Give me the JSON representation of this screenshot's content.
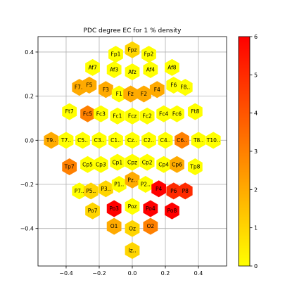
{
  "chart_data": {
    "type": "scatter",
    "title": "PDC degree EC for 1 % density",
    "xlim": [
      -0.57,
      0.57
    ],
    "ylim": [
      -0.57,
      0.47
    ],
    "xticks": [
      -0.4,
      -0.2,
      0.0,
      0.2,
      0.4
    ],
    "xtick_labels": [
      "−0.4",
      "−0.2",
      "0.0",
      "0.2",
      "0.4"
    ],
    "yticks": [
      0.4,
      0.2,
      0.0,
      -0.2,
      -0.4
    ],
    "ytick_labels": [
      "0.4",
      "0.2",
      "0.0",
      "−0.2",
      "−0.4"
    ],
    "grid": true,
    "colorbar": {
      "cmap": "autumn_r",
      "min": 0,
      "max": 6,
      "ticks": [
        0,
        1,
        2,
        3,
        4,
        5,
        6
      ],
      "tick_labels": [
        "0",
        "1",
        "2",
        "3",
        "4",
        "5",
        "6"
      ],
      "colors": [
        "#ffff00",
        "#ff8000",
        "#ff0000"
      ]
    },
    "points": [
      {
        "label": "Fpz",
        "x": 0.0,
        "y": 0.41,
        "value": 1
      },
      {
        "label": "Fp1",
        "x": -0.1,
        "y": 0.39,
        "value": 0
      },
      {
        "label": "Fp2",
        "x": 0.1,
        "y": 0.39,
        "value": 0
      },
      {
        "label": "Af7",
        "x": -0.24,
        "y": 0.33,
        "value": 0
      },
      {
        "label": "Af3",
        "x": -0.11,
        "y": 0.32,
        "value": 0
      },
      {
        "label": "Afz",
        "x": 0.0,
        "y": 0.31,
        "value": 0
      },
      {
        "label": "Af4",
        "x": 0.11,
        "y": 0.32,
        "value": 0
      },
      {
        "label": "Af8",
        "x": 0.24,
        "y": 0.33,
        "value": 0
      },
      {
        "label": "F7..",
        "x": -0.32,
        "y": 0.24,
        "value": 2
      },
      {
        "label": "F5",
        "x": -0.26,
        "y": 0.25,
        "value": 2
      },
      {
        "label": "F3",
        "x": -0.16,
        "y": 0.23,
        "value": 2
      },
      {
        "label": "F1",
        "x": -0.08,
        "y": 0.21,
        "value": 0
      },
      {
        "label": "Fz",
        "x": -0.01,
        "y": 0.21,
        "value": 2
      },
      {
        "label": "F2",
        "x": 0.07,
        "y": 0.21,
        "value": 2
      },
      {
        "label": "F4",
        "x": 0.15,
        "y": 0.23,
        "value": 2
      },
      {
        "label": "F6",
        "x": 0.25,
        "y": 0.25,
        "value": 0
      },
      {
        "label": "F8..",
        "x": 0.32,
        "y": 0.24,
        "value": 0
      },
      {
        "label": "Ft7",
        "x": -0.38,
        "y": 0.13,
        "value": 0
      },
      {
        "label": "Fc5",
        "x": -0.27,
        "y": 0.12,
        "value": 3
      },
      {
        "label": "Fc3",
        "x": -0.19,
        "y": 0.12,
        "value": 0
      },
      {
        "label": "Fc1",
        "x": -0.09,
        "y": 0.11,
        "value": 0
      },
      {
        "label": "Fcz",
        "x": 0.0,
        "y": 0.11,
        "value": 0
      },
      {
        "label": "Fc2",
        "x": 0.09,
        "y": 0.11,
        "value": 0
      },
      {
        "label": "Fc4",
        "x": 0.19,
        "y": 0.12,
        "value": 0
      },
      {
        "label": "Fc6",
        "x": 0.27,
        "y": 0.12,
        "value": 0
      },
      {
        "label": "Ft8",
        "x": 0.38,
        "y": 0.13,
        "value": 0
      },
      {
        "label": "T9..",
        "x": -0.49,
        "y": 0.0,
        "value": 2
      },
      {
        "label": "T7..",
        "x": -0.4,
        "y": 0.0,
        "value": 0
      },
      {
        "label": "C5..",
        "x": -0.3,
        "y": 0.0,
        "value": 0
      },
      {
        "label": "C3..",
        "x": -0.2,
        "y": 0.0,
        "value": 0
      },
      {
        "label": "C1..",
        "x": -0.1,
        "y": 0.0,
        "value": 0
      },
      {
        "label": "Cz..",
        "x": 0.0,
        "y": 0.0,
        "value": 0
      },
      {
        "label": "C2..",
        "x": 0.1,
        "y": 0.0,
        "value": 0
      },
      {
        "label": "C4..",
        "x": 0.2,
        "y": 0.0,
        "value": 0
      },
      {
        "label": "C6..",
        "x": 0.3,
        "y": 0.0,
        "value": 3
      },
      {
        "label": "T8..",
        "x": 0.4,
        "y": 0.0,
        "value": 0
      },
      {
        "label": "T10..",
        "x": 0.49,
        "y": 0.0,
        "value": 0
      },
      {
        "label": "Tp7",
        "x": -0.38,
        "y": -0.12,
        "value": 3
      },
      {
        "label": "Cp5",
        "x": -0.27,
        "y": -0.11,
        "value": 0
      },
      {
        "label": "Cp3",
        "x": -0.19,
        "y": -0.11,
        "value": 0
      },
      {
        "label": "Cp1",
        "x": -0.09,
        "y": -0.1,
        "value": 0
      },
      {
        "label": "Cpz",
        "x": 0.0,
        "y": -0.1,
        "value": 0
      },
      {
        "label": "Cp2",
        "x": 0.09,
        "y": -0.1,
        "value": 0
      },
      {
        "label": "Cp4",
        "x": 0.19,
        "y": -0.11,
        "value": 0
      },
      {
        "label": "Cp6",
        "x": 0.27,
        "y": -0.11,
        "value": 2
      },
      {
        "label": "Tp8",
        "x": 0.38,
        "y": -0.12,
        "value": 0
      },
      {
        "label": "P7..",
        "x": -0.32,
        "y": -0.23,
        "value": 0
      },
      {
        "label": "P5..",
        "x": -0.25,
        "y": -0.23,
        "value": 1
      },
      {
        "label": "P3..",
        "x": -0.16,
        "y": -0.22,
        "value": 1
      },
      {
        "label": "P1..",
        "x": -0.08,
        "y": -0.2,
        "value": 0
      },
      {
        "label": "Pz..",
        "x": 0.0,
        "y": -0.18,
        "value": 2
      },
      {
        "label": "P2..",
        "x": 0.08,
        "y": -0.2,
        "value": 0
      },
      {
        "label": "P4",
        "x": 0.16,
        "y": -0.22,
        "value": 6
      },
      {
        "label": "P6",
        "x": 0.25,
        "y": -0.23,
        "value": 5
      },
      {
        "label": "P8",
        "x": 0.32,
        "y": -0.23,
        "value": 5
      },
      {
        "label": "Po7",
        "x": -0.24,
        "y": -0.32,
        "value": 1
      },
      {
        "label": "Po3",
        "x": -0.11,
        "y": -0.31,
        "value": 6
      },
      {
        "label": "Poz",
        "x": 0.0,
        "y": -0.3,
        "value": 0
      },
      {
        "label": "Po4",
        "x": 0.11,
        "y": -0.31,
        "value": 6
      },
      {
        "label": "Po8",
        "x": 0.24,
        "y": -0.32,
        "value": 6
      },
      {
        "label": "O1",
        "x": -0.11,
        "y": -0.39,
        "value": 2
      },
      {
        "label": "Oz",
        "x": 0.0,
        "y": -0.4,
        "value": 1
      },
      {
        "label": "O2",
        "x": 0.11,
        "y": -0.39,
        "value": 3
      },
      {
        "label": "Iz..",
        "x": 0.0,
        "y": -0.5,
        "value": 1
      }
    ]
  }
}
